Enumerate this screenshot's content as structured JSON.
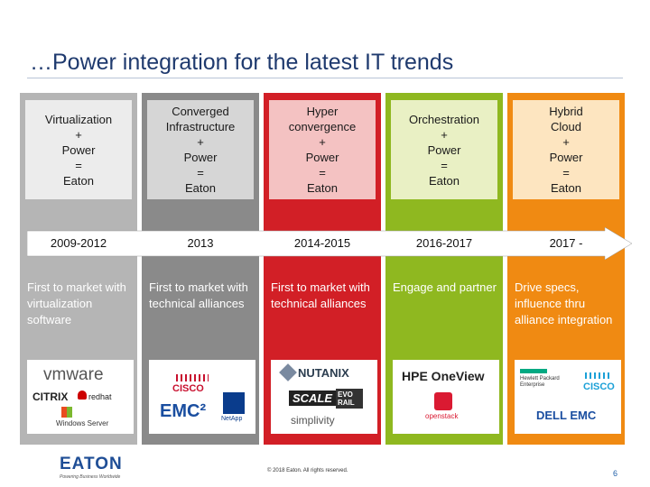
{
  "slide": {
    "title": "…Power integration for the latest IT trends",
    "footer": {
      "brand": "EATON",
      "tagline": "Powering Business Worldwide",
      "copyright": "© 2018 Eaton. All rights reserved.",
      "page_number": "6"
    }
  },
  "columns": [
    {
      "heading": "Virtualization\n+\nPower\n=\nEaton",
      "year": "2009-2012",
      "description": "First to market with virtualization software",
      "bar_color": "#b5b5b5",
      "box_color": "#ececec",
      "logos": [
        "vmware",
        "CITRIX",
        "redhat",
        "Windows Server"
      ]
    },
    {
      "heading": "Converged\nInfrastructure\n+\nPower\n=\nEaton",
      "year": "2013",
      "description": "First to market with technical alliances",
      "bar_color": "#8a8a8a",
      "box_color": "#d6d6d6",
      "logos": [
        "CISCO",
        "EMC²",
        "NetApp"
      ]
    },
    {
      "heading": "Hyper\nconvergence\n+\nPower\n=\nEaton",
      "year": "2014-2015",
      "description": "First to market with technical alliances",
      "bar_color": "#d21f26",
      "box_color": "#f4c2c2",
      "logos": [
        "NUTANIX",
        "SCALE",
        "EVO RAIL",
        "simplivity"
      ]
    },
    {
      "heading": "Orchestration\n+\nPower\n=\nEaton",
      "year": "2016-2017",
      "description": "Engage and partner",
      "bar_color": "#8fb820",
      "box_color": "#e9f0c4",
      "logos": [
        "HPE OneView",
        "openstack"
      ]
    },
    {
      "heading": "Hybrid\nCloud\n+\nPower\n=\nEaton",
      "year": "2017 -",
      "description": "Drive specs, influence thru alliance integration",
      "bar_color": "#f08a12",
      "box_color": "#fde5c0",
      "logos": [
        "Hewlett Packard Enterprise",
        "CISCO",
        "DELL EMC"
      ]
    }
  ]
}
